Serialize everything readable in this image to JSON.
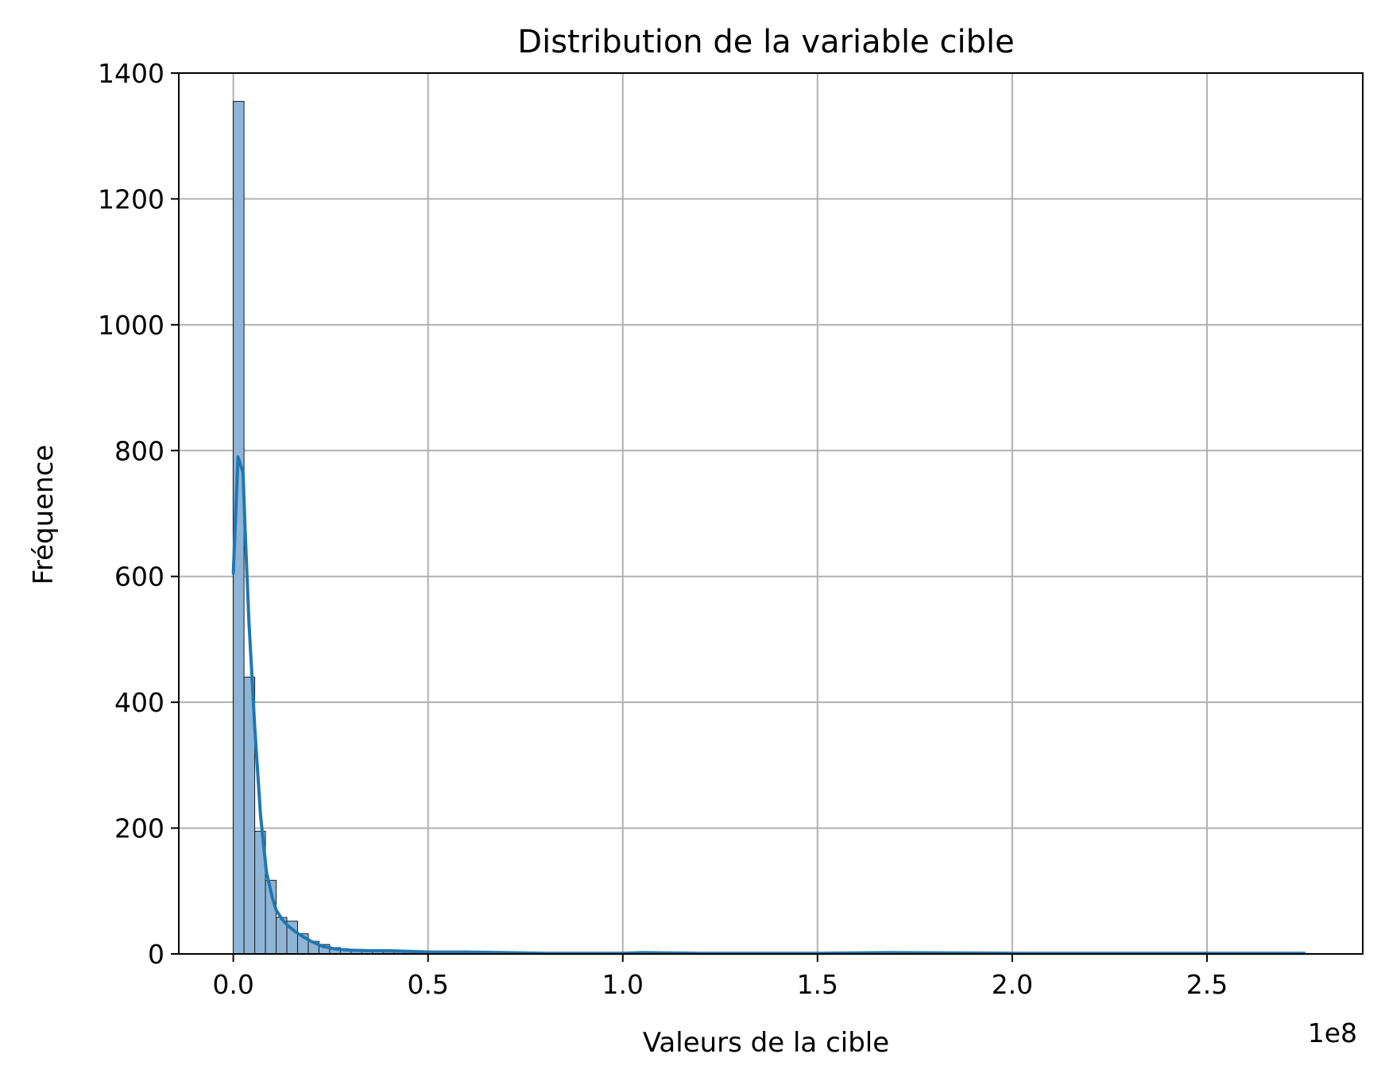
{
  "chart_data": {
    "type": "bar",
    "subtype": "histogram-with-kde",
    "title": "Distribution de la variable cible",
    "xlabel": "Valeurs de la cible",
    "ylabel": "Fréquence",
    "x_offset_label": "1e8",
    "x_scale": 100000000,
    "xlim": [
      -0.14,
      2.9
    ],
    "ylim": [
      0,
      1400
    ],
    "x_ticks": [
      0.0,
      0.5,
      1.0,
      1.5,
      2.0,
      2.5
    ],
    "x_tick_labels": [
      "0.0",
      "0.5",
      "1.0",
      "1.5",
      "2.0",
      "2.5"
    ],
    "y_ticks": [
      0,
      200,
      400,
      600,
      800,
      1000,
      1200,
      1400
    ],
    "y_tick_labels": [
      "0",
      "200",
      "400",
      "600",
      "800",
      "1000",
      "1200",
      "1400"
    ],
    "grid": true,
    "bar_color": "#8fb5d6",
    "kde_color": "#1f77b4",
    "bins": {
      "start": 0.0,
      "width": 0.0275,
      "counts": [
        1355,
        440,
        195,
        117,
        58,
        52,
        32,
        20,
        15,
        10,
        6,
        5,
        4,
        4,
        3,
        3,
        5,
        5,
        3,
        2,
        2,
        2,
        2,
        1,
        1,
        1,
        1,
        1,
        1,
        1,
        1,
        0,
        1,
        0,
        1,
        0,
        0,
        1,
        1,
        0,
        0,
        1,
        0,
        1,
        0,
        0,
        0,
        0,
        0,
        0
      ]
    },
    "kde": {
      "x": [
        0.0,
        0.012,
        0.025,
        0.03,
        0.04,
        0.055,
        0.07,
        0.085,
        0.1,
        0.11,
        0.125,
        0.14,
        0.16,
        0.18,
        0.2,
        0.23,
        0.26,
        0.3,
        0.35,
        0.4,
        0.45,
        0.5,
        0.55,
        0.6,
        0.7,
        0.8,
        1.0,
        1.05,
        1.2,
        1.5,
        1.68,
        2.0,
        2.5,
        2.75
      ],
      "y": [
        605,
        790,
        765,
        680,
        530,
        360,
        220,
        130,
        90,
        70,
        55,
        45,
        35,
        27,
        20,
        12,
        8,
        6,
        5,
        5,
        4,
        3,
        3,
        3,
        2,
        1,
        1,
        2,
        1,
        1,
        2,
        1,
        1,
        1
      ]
    }
  }
}
